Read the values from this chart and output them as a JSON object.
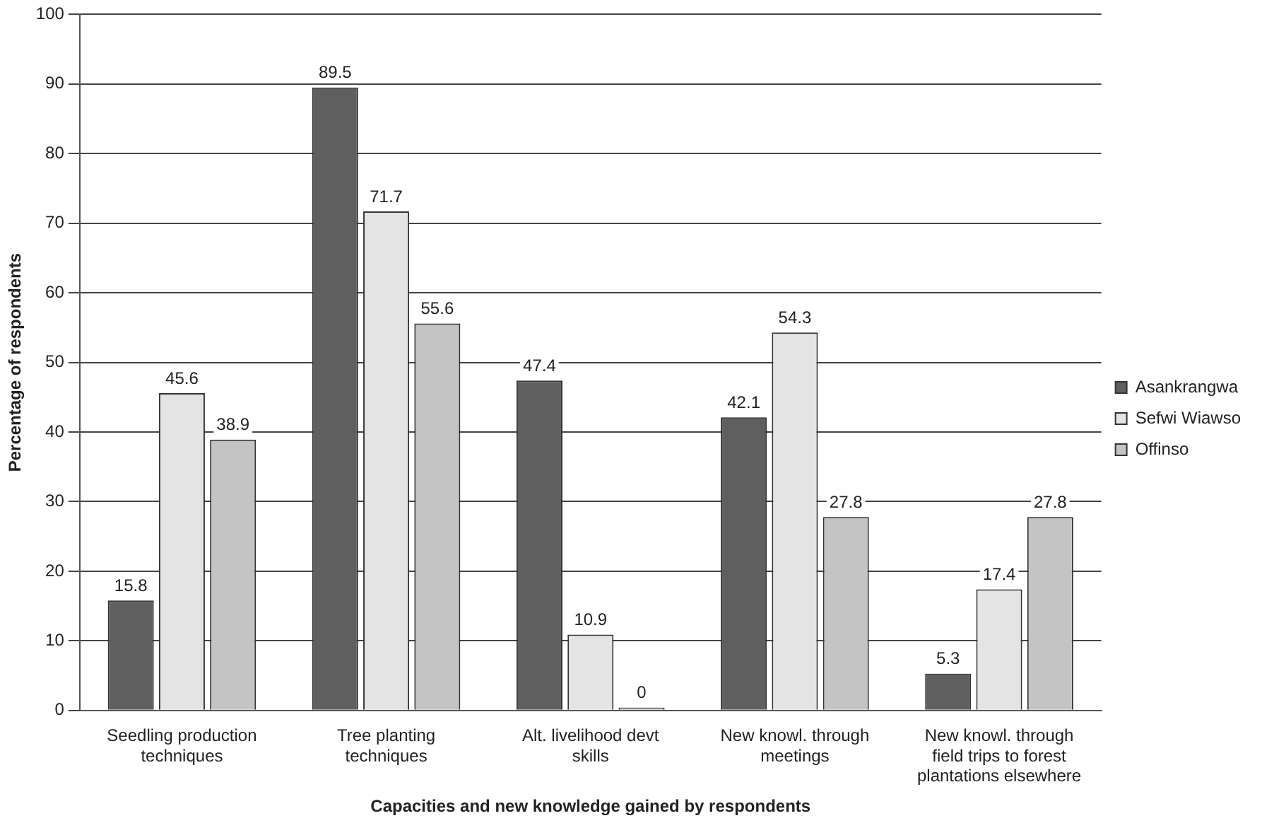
{
  "chart_data": {
    "type": "bar",
    "xlabel": "Capacities and new knowledge gained by respondents",
    "ylabel": "Percentage of respondents",
    "categories": [
      "Seedling production techniques",
      "Tree planting techniques",
      "Alt. livelihood devt skills",
      "New knowl. through meetings",
      "New knowl. through field trips to forest plantations elsewhere"
    ],
    "series": [
      {
        "name": "Asankrangwa",
        "color": "#5f5f5f",
        "values": [
          15.8,
          89.5,
          47.4,
          42.1,
          5.3
        ]
      },
      {
        "name": "Sefwi Wiawso",
        "color": "#e4e4e4",
        "values": [
          45.6,
          71.7,
          10.9,
          54.3,
          17.4
        ]
      },
      {
        "name": "Offinso",
        "color": "#c4c4c4",
        "values": [
          38.9,
          55.6,
          0,
          27.8,
          27.8
        ]
      }
    ],
    "ylim": [
      0,
      100
    ],
    "yticks": [
      0,
      10,
      20,
      30,
      40,
      50,
      60,
      70,
      80,
      90,
      100
    ],
    "grid": "y",
    "legend": "right",
    "data_labels": true
  }
}
